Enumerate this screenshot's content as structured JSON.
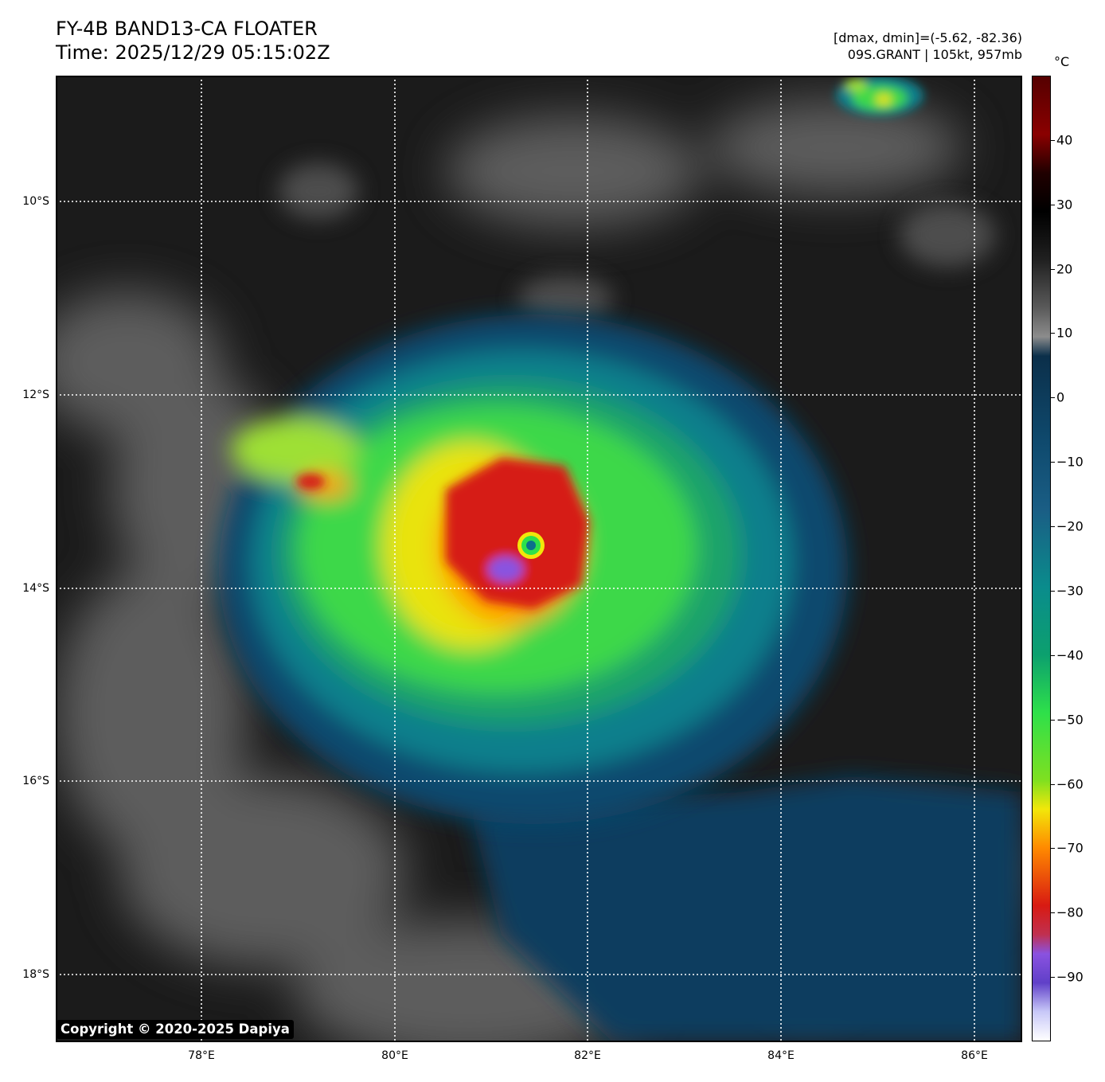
{
  "header": {
    "title_line1": "FY-4B BAND13-CA FLOATER",
    "title_line2": "Time: 2025/12/29 05:15:02Z",
    "info_line1": "[dmax, dmin]=(-5.62, -82.36)",
    "info_line2": "09S.GRANT | 105kt, 957mb"
  },
  "map": {
    "lat_labels": [
      "10°S",
      "12°S",
      "14°S",
      "16°S",
      "18°S"
    ],
    "lon_labels": [
      "78°E",
      "80°E",
      "82°E",
      "84°E",
      "86°E"
    ],
    "storm_center": {
      "lon": 81.4,
      "lat": -13.6
    },
    "copyright": "Copyright © 2020-2025 Dapiya"
  },
  "colorbar": {
    "unit": "°C",
    "ticks": [
      "40",
      "30",
      "20",
      "10",
      "0",
      "−10",
      "−20",
      "−30",
      "−40",
      "−50",
      "−60",
      "−70",
      "−80",
      "−90"
    ],
    "range": [
      -100,
      50
    ],
    "colors": {
      "max": "#550000",
      "warm": "#000000",
      "neutral": "#ffffff",
      "cold_blue": "#0f4a6e",
      "teal": "#0a8c8c",
      "green": "#2ee04a",
      "yellow": "#f2e70a",
      "orange": "#ff8a00",
      "red": "#d81a12",
      "purple": "#8a52e0",
      "min": "#ffffff"
    }
  }
}
